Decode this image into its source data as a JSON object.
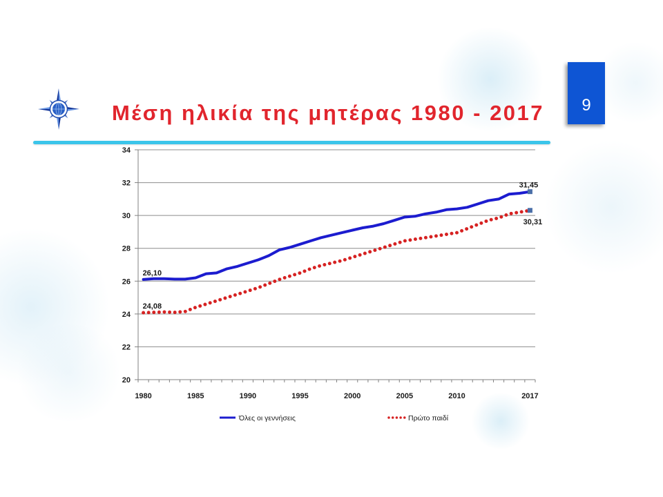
{
  "slide": {
    "title": "Μέση ηλικία της μητέρας 1980 - 2017",
    "page_number": "9",
    "logo_icon": "compass-star-icon"
  },
  "colors": {
    "title": "#e1252d",
    "page_number_box": "#0e55d4",
    "divider": "#3bc5ea",
    "grid": "#8c8c8c",
    "end_marker": "#4a6fa8"
  },
  "chart_data": {
    "type": "line",
    "x": [
      1980,
      1981,
      1982,
      1983,
      1984,
      1985,
      1986,
      1987,
      1988,
      1989,
      1990,
      1991,
      1992,
      1993,
      1994,
      1995,
      1996,
      1997,
      1998,
      1999,
      2000,
      2001,
      2002,
      2003,
      2004,
      2005,
      2006,
      2007,
      2008,
      2009,
      2010,
      2011,
      2012,
      2013,
      2014,
      2015,
      2016,
      2017
    ],
    "x_tick_labels": [
      "1980",
      "1985",
      "1990",
      "1995",
      "2000",
      "2005",
      "2010",
      "2017"
    ],
    "y_ticks": [
      20,
      22,
      24,
      26,
      28,
      30,
      32,
      34
    ],
    "ylim": [
      20,
      34
    ],
    "grid": true,
    "legend_position": "bottom",
    "series": [
      {
        "name": "Όλες οι γεννήσεις",
        "color": "#1c1ccf",
        "line_style": "solid",
        "end_marker": "square",
        "values": [
          26.1,
          26.15,
          26.15,
          26.12,
          26.12,
          26.2,
          26.45,
          26.5,
          26.75,
          26.9,
          27.1,
          27.3,
          27.55,
          27.9,
          28.05,
          28.25,
          28.45,
          28.65,
          28.8,
          28.95,
          29.1,
          29.25,
          29.35,
          29.5,
          29.7,
          29.9,
          29.95,
          30.1,
          30.2,
          30.35,
          30.4,
          30.5,
          30.7,
          30.9,
          31.0,
          31.3,
          31.35,
          31.45
        ]
      },
      {
        "name": "Πρώτο παιδί",
        "color": "#d62222",
        "line_style": "dotted",
        "end_marker": "square",
        "values": [
          24.08,
          24.1,
          24.12,
          24.1,
          24.15,
          24.4,
          24.6,
          24.8,
          25.0,
          25.2,
          25.4,
          25.6,
          25.85,
          26.1,
          26.3,
          26.5,
          26.75,
          26.95,
          27.1,
          27.25,
          27.45,
          27.65,
          27.85,
          28.05,
          28.25,
          28.45,
          28.55,
          28.65,
          28.75,
          28.85,
          28.95,
          29.2,
          29.45,
          29.7,
          29.85,
          30.1,
          30.2,
          30.31
        ]
      }
    ],
    "data_labels": [
      {
        "series": 0,
        "x": 1980,
        "text": "26,10",
        "position": "above"
      },
      {
        "series": 1,
        "x": 1980,
        "text": "24,08",
        "position": "above"
      },
      {
        "series": 0,
        "x": 2017,
        "text": "31,45",
        "position": "above"
      },
      {
        "series": 1,
        "x": 2017,
        "text": "30,31",
        "position": "below"
      }
    ]
  }
}
